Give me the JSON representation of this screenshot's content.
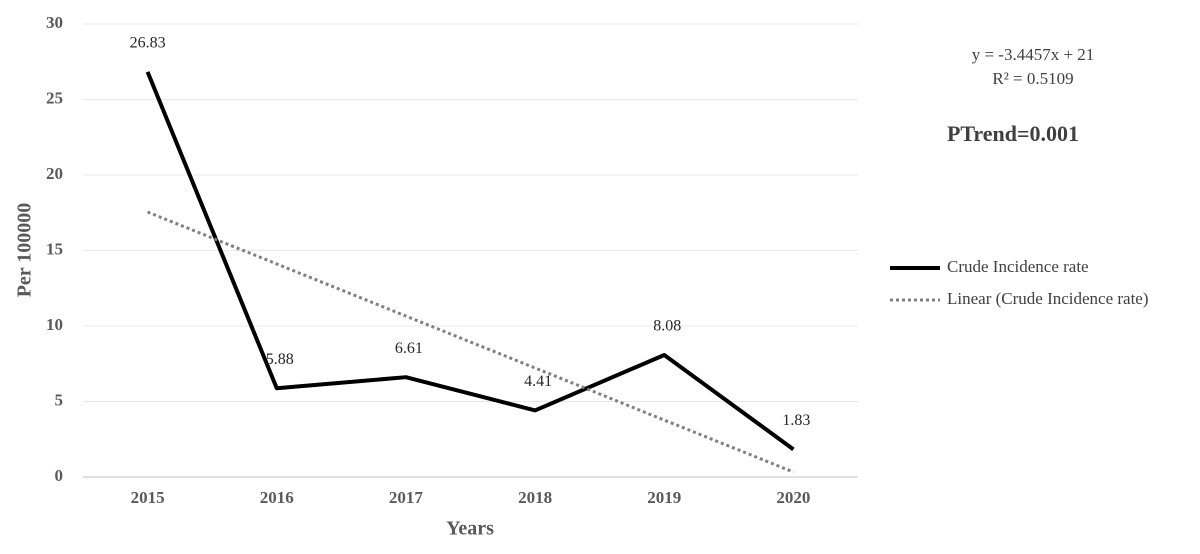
{
  "chart_data": {
    "type": "line",
    "categories": [
      "2015",
      "2016",
      "2017",
      "2018",
      "2019",
      "2020"
    ],
    "series": [
      {
        "name": "Crude Incidence rate",
        "color": "#000000",
        "values": [
          26.83,
          5.88,
          6.61,
          4.41,
          8.08,
          1.83
        ],
        "show_labels": true,
        "dash": "solid"
      },
      {
        "name": "Linear (Crude Incidence rate)",
        "color": "#808080",
        "values": [
          17.55,
          14.11,
          10.66,
          7.22,
          3.77,
          0.33
        ],
        "show_labels": false,
        "dash": "dotted"
      }
    ],
    "ylim": [
      0,
      30
    ],
    "yticks": [
      0,
      5,
      10,
      15,
      20,
      25,
      30
    ],
    "grid": true,
    "x_label": "Years",
    "y_label": "Per 100000",
    "annotations": [
      "y = -3.4457x + 21",
      "R² = 0.5109",
      "PTrend=0.001"
    ],
    "legend": "right"
  }
}
